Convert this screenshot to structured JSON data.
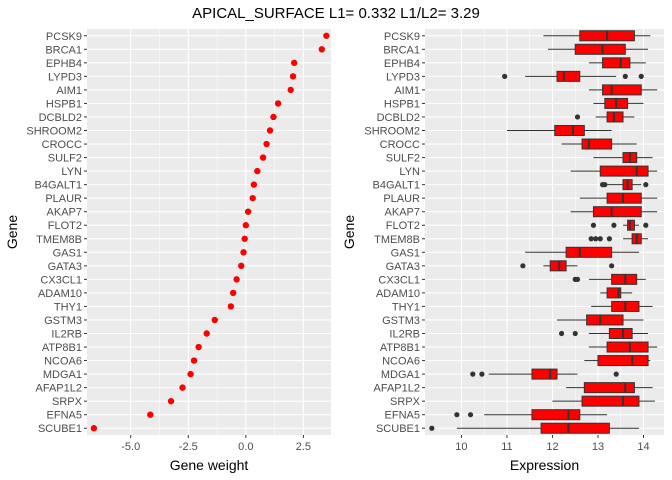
{
  "title": "APICAL_SURFACE L1= 0.332 L1/L2= 3.29",
  "colors": {
    "panel_bg": "#ebebeb",
    "grid": "#ffffff",
    "point": "#ff0000",
    "box_fill": "#ff0000",
    "box_line": "#333333",
    "outlier": "#333333",
    "tick_text": "#4d4d4d"
  },
  "chart_data": [
    {
      "type": "scatter",
      "xlabel": "Gene weight",
      "ylabel": "Gene",
      "xlim": [
        -6.9,
        3.7
      ],
      "x_ticks": [
        -5.0,
        -2.5,
        0.0,
        2.5
      ],
      "x_tick_labels": [
        "-5.0",
        "-2.5",
        "0.0",
        "2.5"
      ],
      "grid": true,
      "genes": [
        "PCSK9",
        "BRCA1",
        "EPHB4",
        "LYPD3",
        "AIM1",
        "HSPB1",
        "DCBLD2",
        "SHROOM2",
        "CROCC",
        "SULF2",
        "LYN",
        "B4GALT1",
        "PLAUR",
        "AKAP7",
        "FLOT2",
        "TMEM8B",
        "GAS1",
        "GATA3",
        "CX3CL1",
        "ADAM10",
        "THY1",
        "GSTM3",
        "IL2RB",
        "ATP8B1",
        "NCOA6",
        "MDGA1",
        "AFAP1L2",
        "SRPX",
        "EFNA5",
        "SCUBE1"
      ],
      "values": [
        3.5,
        3.3,
        2.1,
        2.05,
        1.95,
        1.4,
        1.2,
        1.05,
        0.9,
        0.75,
        0.5,
        0.35,
        0.3,
        0.1,
        0.0,
        -0.05,
        -0.1,
        -0.2,
        -0.4,
        -0.55,
        -0.65,
        -1.35,
        -1.7,
        -2.05,
        -2.25,
        -2.4,
        -2.75,
        -3.25,
        -4.15,
        -6.6
      ]
    },
    {
      "type": "box",
      "xlabel": "Expression",
      "ylabel": "Gene",
      "xlim": [
        9.2,
        14.45
      ],
      "x_ticks": [
        10,
        11,
        12,
        13,
        14
      ],
      "x_tick_labels": [
        "10",
        "11",
        "12",
        "13",
        "14"
      ],
      "grid": true,
      "genes": [
        "PCSK9",
        "BRCA1",
        "EPHB4",
        "LYPD3",
        "AIM1",
        "HSPB1",
        "DCBLD2",
        "SHROOM2",
        "CROCC",
        "SULF2",
        "LYN",
        "B4GALT1",
        "PLAUR",
        "AKAP7",
        "FLOT2",
        "TMEM8B",
        "GAS1",
        "GATA3",
        "CX3CL1",
        "ADAM10",
        "THY1",
        "GSTM3",
        "IL2RB",
        "ATP8B1",
        "NCOA6",
        "MDGA1",
        "AFAP1L2",
        "SRPX",
        "EFNA5",
        "SCUBE1"
      ],
      "boxes": [
        {
          "min": 11.8,
          "q1": 12.6,
          "median": 13.2,
          "q3": 13.8,
          "max": 14.15,
          "outliers": []
        },
        {
          "min": 11.9,
          "q1": 12.5,
          "median": 13.1,
          "q3": 13.6,
          "max": 14.1,
          "outliers": []
        },
        {
          "min": 12.8,
          "q1": 13.1,
          "median": 13.5,
          "q3": 13.7,
          "max": 14.05,
          "outliers": []
        },
        {
          "min": 11.4,
          "q1": 12.1,
          "median": 12.25,
          "q3": 12.6,
          "max": 13.4,
          "outliers": [
            10.95,
            13.6,
            13.95
          ]
        },
        {
          "min": 12.8,
          "q1": 13.1,
          "median": 13.3,
          "q3": 13.95,
          "max": 14.3,
          "outliers": []
        },
        {
          "min": 12.9,
          "q1": 13.15,
          "median": 13.4,
          "q3": 13.65,
          "max": 14.0,
          "outliers": []
        },
        {
          "min": 12.95,
          "q1": 13.2,
          "median": 13.35,
          "q3": 13.55,
          "max": 13.8,
          "outliers": [
            12.55
          ]
        },
        {
          "min": 11.0,
          "q1": 12.05,
          "median": 12.45,
          "q3": 12.7,
          "max": 13.3,
          "outliers": []
        },
        {
          "min": 12.2,
          "q1": 12.65,
          "median": 12.8,
          "q3": 13.3,
          "max": 13.85,
          "outliers": []
        },
        {
          "min": 12.9,
          "q1": 13.55,
          "median": 13.7,
          "q3": 13.85,
          "max": 14.2,
          "outliers": []
        },
        {
          "min": 12.4,
          "q1": 13.05,
          "median": 13.85,
          "q3": 14.1,
          "max": 14.3,
          "outliers": []
        },
        {
          "min": 13.2,
          "q1": 13.55,
          "median": 13.65,
          "q3": 13.75,
          "max": 13.95,
          "outliers": [
            13.1,
            13.15,
            14.05
          ]
        },
        {
          "min": 12.6,
          "q1": 13.2,
          "median": 13.55,
          "q3": 13.95,
          "max": 14.3,
          "outliers": []
        },
        {
          "min": 12.4,
          "q1": 12.9,
          "median": 13.3,
          "q3": 13.95,
          "max": 14.3,
          "outliers": []
        },
        {
          "min": 13.55,
          "q1": 13.65,
          "median": 13.7,
          "q3": 13.8,
          "max": 13.9,
          "outliers": [
            12.9,
            13.35,
            14.05
          ]
        },
        {
          "min": 13.55,
          "q1": 13.75,
          "median": 13.85,
          "q3": 13.95,
          "max": 14.1,
          "outliers": [
            12.85,
            12.95,
            13.05,
            13.25
          ]
        },
        {
          "min": 11.4,
          "q1": 12.3,
          "median": 12.6,
          "q3": 13.3,
          "max": 13.9,
          "outliers": []
        },
        {
          "min": 11.8,
          "q1": 11.95,
          "median": 12.15,
          "q3": 12.3,
          "max": 12.55,
          "outliers": [
            11.35,
            13.3
          ]
        },
        {
          "min": 12.8,
          "q1": 13.3,
          "median": 13.6,
          "q3": 13.85,
          "max": 14.05,
          "outliers": [
            12.5,
            12.55
          ]
        },
        {
          "min": 13.05,
          "q1": 13.2,
          "median": 13.45,
          "q3": 13.5,
          "max": 13.75,
          "outliers": []
        },
        {
          "min": 12.85,
          "q1": 13.3,
          "median": 13.6,
          "q3": 13.9,
          "max": 14.2,
          "outliers": []
        },
        {
          "min": 12.1,
          "q1": 12.75,
          "median": 13.05,
          "q3": 13.55,
          "max": 14.0,
          "outliers": []
        },
        {
          "min": 12.8,
          "q1": 13.25,
          "median": 13.55,
          "q3": 13.75,
          "max": 14.1,
          "outliers": [
            12.2,
            12.5
          ]
        },
        {
          "min": 12.8,
          "q1": 13.2,
          "median": 13.7,
          "q3": 14.1,
          "max": 14.3,
          "outliers": []
        },
        {
          "min": 12.7,
          "q1": 13.0,
          "median": 13.75,
          "q3": 14.1,
          "max": 14.15,
          "outliers": []
        },
        {
          "min": 10.6,
          "q1": 11.55,
          "median": 11.95,
          "q3": 12.1,
          "max": 12.55,
          "outliers": [
            10.25,
            10.45,
            13.4
          ]
        },
        {
          "min": 12.3,
          "q1": 12.7,
          "median": 13.6,
          "q3": 13.8,
          "max": 14.2,
          "outliers": []
        },
        {
          "min": 12.0,
          "q1": 12.65,
          "median": 13.55,
          "q3": 13.9,
          "max": 14.25,
          "outliers": []
        },
        {
          "min": 10.5,
          "q1": 11.55,
          "median": 12.35,
          "q3": 12.6,
          "max": 13.2,
          "outliers": [
            9.9,
            10.2
          ]
        },
        {
          "min": 9.9,
          "q1": 11.75,
          "median": 12.35,
          "q3": 13.25,
          "max": 13.9,
          "outliers": [
            9.35
          ]
        }
      ]
    }
  ]
}
